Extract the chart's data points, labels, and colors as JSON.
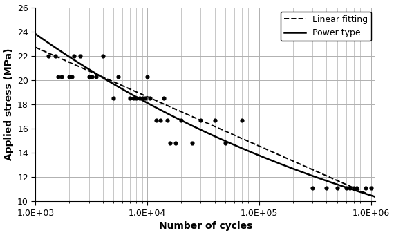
{
  "scatter_x": [
    1300,
    1500,
    1600,
    1700,
    2000,
    2100,
    2200,
    2500,
    3000,
    3200,
    3500,
    4000,
    5000,
    5500,
    7000,
    7500,
    8000,
    8500,
    9000,
    9500,
    10000,
    10500,
    12000,
    13000,
    14000,
    15000,
    16000,
    18000,
    20000,
    25000,
    30000,
    40000,
    50000,
    70000,
    300000,
    400000,
    500000,
    600000,
    650000,
    700000,
    750000,
    900000,
    1000000
  ],
  "scatter_y": [
    22.0,
    22.0,
    20.3,
    20.3,
    20.3,
    20.3,
    22.0,
    22.0,
    20.3,
    20.3,
    20.3,
    22.0,
    18.5,
    20.3,
    18.5,
    18.5,
    18.5,
    18.5,
    18.5,
    18.5,
    20.3,
    18.5,
    16.7,
    16.7,
    18.5,
    16.7,
    14.8,
    14.8,
    16.7,
    14.8,
    16.7,
    16.7,
    14.8,
    16.7,
    11.1,
    11.1,
    11.1,
    11.1,
    11.1,
    11.1,
    11.1,
    11.1,
    11.1
  ],
  "linear_a": 34.9,
  "linear_b": -4.067,
  "power_A": 95.0,
  "power_B": -0.165,
  "xlim_log": [
    1000,
    1100000
  ],
  "ylim": [
    10,
    26
  ],
  "yticks": [
    10,
    12,
    14,
    16,
    18,
    20,
    22,
    24,
    26
  ],
  "xlabel": "Number of cycles",
  "ylabel": "Applied stress (MPa)",
  "legend_linear": "Linear fitting",
  "legend_power": "Power type",
  "background_color": "#ffffff",
  "grid_color": "#b0b0b0"
}
